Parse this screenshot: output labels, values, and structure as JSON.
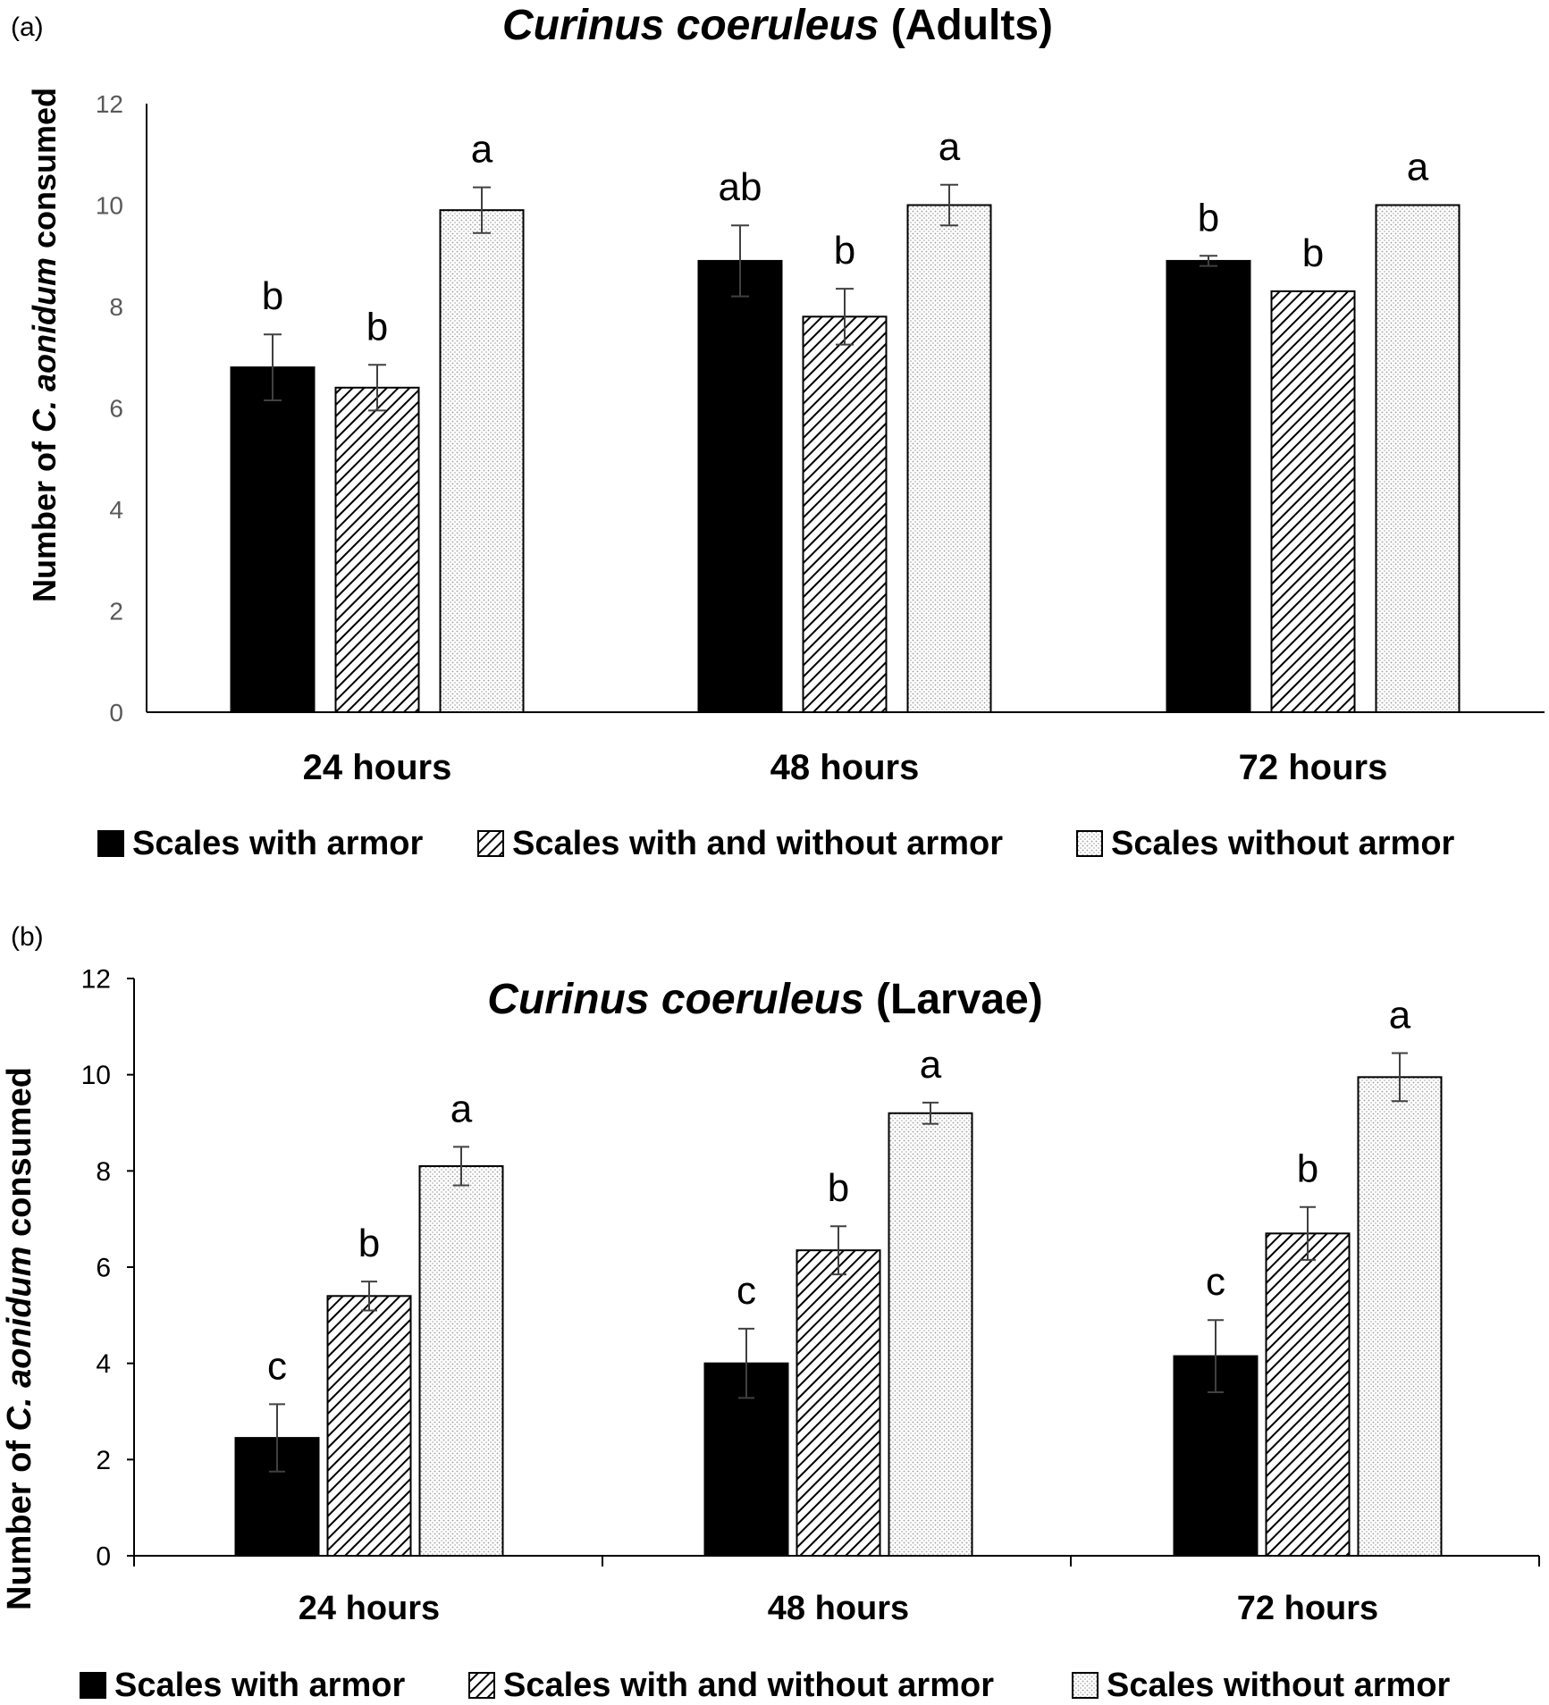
{
  "colors": {
    "series_with_armor": "#000000",
    "hatch": "#000000",
    "dots": "#9a9a9a",
    "axis": "#000000",
    "error_bar": "#404040"
  },
  "chart_data": [
    {
      "type": "bar",
      "panel_label": "(a)",
      "title": {
        "italic": "Curinus coeruleus",
        "rest": " (Adults)"
      },
      "ylabel": {
        "pre": "Number of ",
        "italic": "C. aonidum",
        "post": " consumed"
      },
      "xlabel": "",
      "ylim": [
        0,
        12
      ],
      "yticks": [
        "0",
        "2",
        "4",
        "6",
        "8",
        "10",
        "12"
      ],
      "grid": false,
      "legend_position": "bottom",
      "categories": [
        "24 hours",
        "48 hours",
        "72 hours"
      ],
      "series": [
        {
          "name": "Scales with armor",
          "pattern": "solid",
          "values": [
            6.8,
            8.9,
            8.9
          ],
          "errors": [
            0.65,
            0.7,
            0.1
          ],
          "letters": [
            "b",
            "ab",
            "b"
          ]
        },
        {
          "name": "Scales with and without armor",
          "pattern": "hatch",
          "values": [
            6.4,
            7.8,
            8.3
          ],
          "errors": [
            0.45,
            0.55,
            0.0
          ],
          "letters": [
            "b",
            "b",
            "b"
          ]
        },
        {
          "name": "Scales without armor",
          "pattern": "dots",
          "values": [
            9.9,
            10.0,
            10.0
          ],
          "errors": [
            0.45,
            0.4,
            0.0
          ],
          "letters": [
            "a",
            "a",
            "a"
          ]
        }
      ]
    },
    {
      "type": "bar",
      "panel_label": "(b)",
      "title": {
        "italic": "Curinus coeruleus",
        "rest": " (Larvae)"
      },
      "ylabel": {
        "pre": "Number of ",
        "italic": "C. aonidum",
        "post": " consumed"
      },
      "xlabel": "",
      "ylim": [
        0,
        12
      ],
      "yticks": [
        "0",
        "2",
        "4",
        "6",
        "8",
        "10",
        "12"
      ],
      "grid": false,
      "legend_position": "bottom",
      "categories": [
        "24 hours",
        "48 hours",
        "72 hours"
      ],
      "series": [
        {
          "name": "Scales with armor",
          "pattern": "solid",
          "values": [
            2.45,
            4.0,
            4.15
          ],
          "errors": [
            0.7,
            0.72,
            0.75
          ],
          "letters": [
            "c",
            "c",
            "c"
          ]
        },
        {
          "name": "Scales with and without armor",
          "pattern": "hatch",
          "values": [
            5.4,
            6.35,
            6.7
          ],
          "errors": [
            0.3,
            0.5,
            0.55
          ],
          "letters": [
            "b",
            "b",
            "b"
          ]
        },
        {
          "name": "Scales without armor",
          "pattern": "dots",
          "values": [
            8.1,
            9.2,
            9.95
          ],
          "errors": [
            0.4,
            0.22,
            0.5
          ],
          "letters": [
            "a",
            "a",
            "a"
          ]
        }
      ]
    }
  ]
}
